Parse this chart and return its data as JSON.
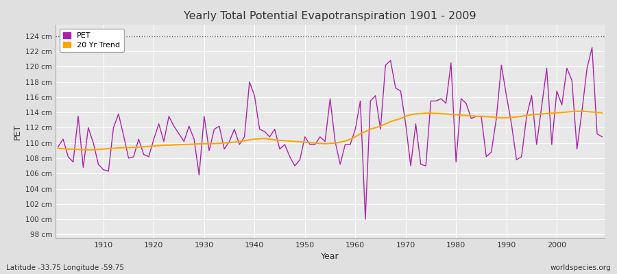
{
  "title": "Yearly Total Potential Evapotranspiration 1901 - 2009",
  "xlabel": "Year",
  "ylabel": "PET",
  "lat_lon_label": "Latitude -33.75 Longitude -59.75",
  "source_label": "worldspecies.org",
  "ylim": [
    97.5,
    125.5
  ],
  "yticks": [
    98,
    100,
    102,
    104,
    106,
    108,
    110,
    112,
    114,
    116,
    118,
    120,
    122,
    124
  ],
  "ytick_labels": [
    "98 cm",
    "100 cm",
    "102 cm",
    "104 cm",
    "106 cm",
    "108 cm",
    "110 cm",
    "112 cm",
    "114 cm",
    "116 cm",
    "118 cm",
    "120 cm",
    "122 cm",
    "124 cm"
  ],
  "xticks": [
    1910,
    1920,
    1930,
    1940,
    1950,
    1960,
    1970,
    1980,
    1990,
    2000
  ],
  "pet_color": "#AA22AA",
  "trend_color": "#FFA500",
  "fig_bg_color": "#E0E0E0",
  "plot_bg_color": "#E8E8E8",
  "grid_color": "#FFFFFF",
  "years": [
    1901,
    1902,
    1903,
    1904,
    1905,
    1906,
    1907,
    1908,
    1909,
    1910,
    1911,
    1912,
    1913,
    1914,
    1915,
    1916,
    1917,
    1918,
    1919,
    1920,
    1921,
    1922,
    1923,
    1924,
    1925,
    1926,
    1927,
    1928,
    1929,
    1930,
    1931,
    1932,
    1933,
    1934,
    1935,
    1936,
    1937,
    1938,
    1939,
    1940,
    1941,
    1942,
    1943,
    1944,
    1945,
    1946,
    1947,
    1948,
    1949,
    1950,
    1951,
    1952,
    1953,
    1954,
    1955,
    1956,
    1957,
    1958,
    1959,
    1960,
    1961,
    1962,
    1963,
    1964,
    1965,
    1966,
    1967,
    1968,
    1969,
    1970,
    1971,
    1972,
    1973,
    1974,
    1975,
    1976,
    1977,
    1978,
    1979,
    1980,
    1981,
    1982,
    1983,
    1984,
    1985,
    1986,
    1987,
    1988,
    1989,
    1990,
    1991,
    1992,
    1993,
    1994,
    1995,
    1996,
    1997,
    1998,
    1999,
    2000,
    2001,
    2002,
    2003,
    2004,
    2005,
    2006,
    2007,
    2008,
    2009
  ],
  "pet_values": [
    109.5,
    110.5,
    108.2,
    107.5,
    113.5,
    106.8,
    112.0,
    110.0,
    107.2,
    106.5,
    106.3,
    112.0,
    113.8,
    111.0,
    108.0,
    108.2,
    110.5,
    108.5,
    108.2,
    110.5,
    112.5,
    110.2,
    113.5,
    112.2,
    111.2,
    110.2,
    112.2,
    110.5,
    105.8,
    113.5,
    109.0,
    111.8,
    112.2,
    109.2,
    110.2,
    111.8,
    109.8,
    110.8,
    118.0,
    116.2,
    111.8,
    111.5,
    110.8,
    111.8,
    109.2,
    109.8,
    108.2,
    107.0,
    107.8,
    110.8,
    109.8,
    109.8,
    110.8,
    110.2,
    115.8,
    110.2,
    107.2,
    109.8,
    109.8,
    111.8,
    115.5,
    100.0,
    115.5,
    116.2,
    111.8,
    120.2,
    120.8,
    117.2,
    116.8,
    112.5,
    107.0,
    112.5,
    107.2,
    107.0,
    115.5,
    115.5,
    115.8,
    115.2,
    120.5,
    107.5,
    115.8,
    115.2,
    113.2,
    113.5,
    113.5,
    108.2,
    108.8,
    113.2,
    120.2,
    116.2,
    112.5,
    107.8,
    108.2,
    113.5,
    116.2,
    109.8,
    114.8,
    119.8,
    109.8,
    116.8,
    115.0,
    119.8,
    118.2,
    109.2,
    114.2,
    119.8,
    122.5,
    111.2,
    110.8
  ],
  "trend_values": [
    109.3,
    109.25,
    109.2,
    109.18,
    109.15,
    109.12,
    109.1,
    109.12,
    109.15,
    109.2,
    109.25,
    109.3,
    109.35,
    109.38,
    109.4,
    109.42,
    109.45,
    109.5,
    109.55,
    109.6,
    109.65,
    109.7,
    109.72,
    109.75,
    109.78,
    109.8,
    109.82,
    109.85,
    109.88,
    109.9,
    109.9,
    109.92,
    109.95,
    110.0,
    110.05,
    110.1,
    110.2,
    110.3,
    110.4,
    110.5,
    110.55,
    110.58,
    110.5,
    110.4,
    110.35,
    110.3,
    110.25,
    110.2,
    110.15,
    110.1,
    110.05,
    110.0,
    109.95,
    109.9,
    109.95,
    110.0,
    110.1,
    110.25,
    110.5,
    110.8,
    111.2,
    111.5,
    111.8,
    112.0,
    112.2,
    112.5,
    112.8,
    113.0,
    113.2,
    113.5,
    113.7,
    113.8,
    113.85,
    113.9,
    113.9,
    113.88,
    113.85,
    113.8,
    113.75,
    113.7,
    113.65,
    113.6,
    113.55,
    113.5,
    113.5,
    113.45,
    113.4,
    113.35,
    113.3,
    113.3,
    113.35,
    113.4,
    113.5,
    113.6,
    113.7,
    113.75,
    113.8,
    113.85,
    113.9,
    113.95,
    114.0,
    114.05,
    114.1,
    114.15,
    114.15,
    114.1,
    114.05,
    114.0,
    113.95
  ]
}
